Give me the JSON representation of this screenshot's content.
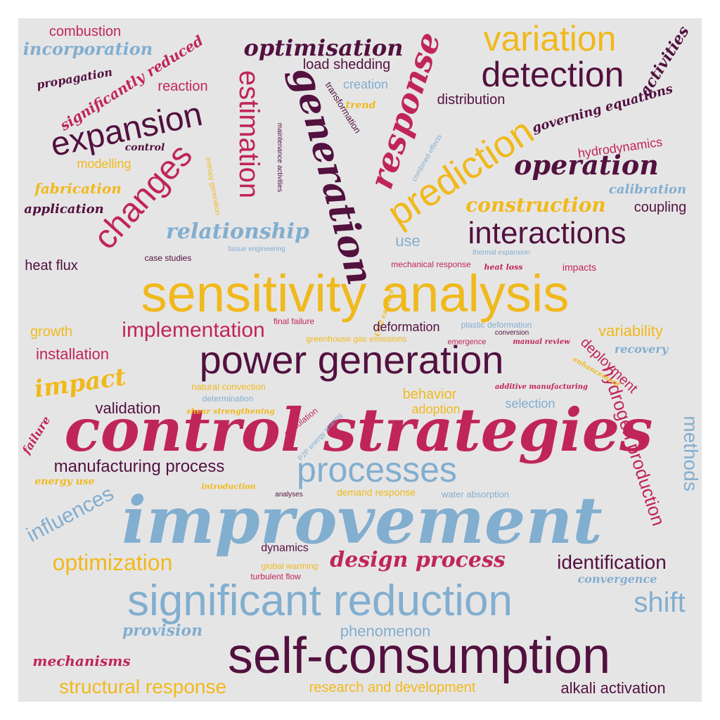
{
  "palette": {
    "background": "#e6e5e6",
    "yellow": "#f0b91c",
    "crimson": "#c0255a",
    "plum": "#52113f",
    "blue": "#82aecf"
  },
  "words": [
    {
      "text": "sensitivity analysis",
      "color": "yellow",
      "style": "sans"
    },
    {
      "text": "control strategies",
      "color": "crimson",
      "style": "script"
    },
    {
      "text": "improvement",
      "color": "blue",
      "style": "script"
    },
    {
      "text": "self-consumption",
      "color": "plum",
      "style": "sans"
    },
    {
      "text": "significant reduction",
      "color": "blue",
      "style": "sans"
    },
    {
      "text": "power generation",
      "color": "plum",
      "style": "sans"
    },
    {
      "text": "processes",
      "color": "blue",
      "style": "sans"
    },
    {
      "text": "prediction",
      "color": "yellow",
      "style": "sans"
    },
    {
      "text": "variation",
      "color": "yellow",
      "style": "sans"
    },
    {
      "text": "detection",
      "color": "plum",
      "style": "sans"
    },
    {
      "text": "expansion",
      "color": "plum",
      "style": "sans"
    },
    {
      "text": "changes",
      "color": "crimson",
      "style": "sans"
    },
    {
      "text": "estimation",
      "color": "crimson",
      "style": "sans"
    },
    {
      "text": "generation",
      "color": "plum",
      "style": "script"
    },
    {
      "text": "response",
      "color": "crimson",
      "style": "script"
    },
    {
      "text": "interactions",
      "color": "plum",
      "style": "sans"
    },
    {
      "text": "operation",
      "color": "plum",
      "style": "script"
    },
    {
      "text": "optimisation",
      "color": "plum",
      "style": "script"
    },
    {
      "text": "relationship",
      "color": "blue",
      "style": "script"
    },
    {
      "text": "construction",
      "color": "yellow",
      "style": "script"
    },
    {
      "text": "implementation",
      "color": "crimson",
      "style": "sans"
    },
    {
      "text": "impact",
      "color": "yellow",
      "style": "script"
    },
    {
      "text": "design process",
      "color": "crimson",
      "style": "script"
    },
    {
      "text": "optimization",
      "color": "yellow",
      "style": "sans"
    },
    {
      "text": "identification",
      "color": "plum",
      "style": "sans"
    },
    {
      "text": "influences",
      "color": "blue",
      "style": "sans"
    },
    {
      "text": "manufacturing process",
      "color": "plum",
      "style": "sans"
    },
    {
      "text": "structural response",
      "color": "yellow",
      "style": "sans"
    },
    {
      "text": "hydrogen production",
      "color": "crimson",
      "style": "sans"
    },
    {
      "text": "methods",
      "color": "blue",
      "style": "sans"
    },
    {
      "text": "shift",
      "color": "blue",
      "style": "sans"
    },
    {
      "text": "combustion",
      "color": "crimson",
      "style": "sans"
    },
    {
      "text": "incorporation",
      "color": "blue",
      "style": "script"
    },
    {
      "text": "propagation",
      "color": "plum",
      "style": "script"
    },
    {
      "text": "significantly reduced",
      "color": "crimson",
      "style": "script"
    },
    {
      "text": "reaction",
      "color": "crimson",
      "style": "sans"
    },
    {
      "text": "load shedding",
      "color": "plum",
      "style": "sans"
    },
    {
      "text": "creation",
      "color": "blue",
      "style": "sans"
    },
    {
      "text": "trend",
      "color": "yellow",
      "style": "script"
    },
    {
      "text": "transformation",
      "color": "plum",
      "style": "sans"
    },
    {
      "text": "distribution",
      "color": "plum",
      "style": "sans"
    },
    {
      "text": "activities",
      "color": "plum",
      "style": "script"
    },
    {
      "text": "governing equations",
      "color": "plum",
      "style": "script"
    },
    {
      "text": "hydrodynamics",
      "color": "crimson",
      "style": "sans"
    },
    {
      "text": "control",
      "color": "plum",
      "style": "script"
    },
    {
      "text": "modelling",
      "color": "yellow",
      "style": "sans"
    },
    {
      "text": "fabrication",
      "color": "yellow",
      "style": "script"
    },
    {
      "text": "application",
      "color": "plum",
      "style": "script"
    },
    {
      "text": "maintenance activities",
      "color": "plum",
      "style": "sans"
    },
    {
      "text": "entropy generation",
      "color": "yellow",
      "style": "sans"
    },
    {
      "text": "combined effects",
      "color": "blue",
      "style": "sans"
    },
    {
      "text": "calibration",
      "color": "blue",
      "style": "script"
    },
    {
      "text": "coupling",
      "color": "plum",
      "style": "sans"
    },
    {
      "text": "use",
      "color": "blue",
      "style": "sans"
    },
    {
      "text": "heat flux",
      "color": "plum",
      "style": "sans"
    },
    {
      "text": "case studies",
      "color": "plum",
      "style": "sans"
    },
    {
      "text": "tissue engineering",
      "color": "blue",
      "style": "sans"
    },
    {
      "text": "thermal expansion",
      "color": "blue",
      "style": "sans"
    },
    {
      "text": "mechanical response",
      "color": "crimson",
      "style": "sans"
    },
    {
      "text": "heat loss",
      "color": "crimson",
      "style": "script"
    },
    {
      "text": "impacts",
      "color": "crimson",
      "style": "sans"
    },
    {
      "text": "CO2 capture",
      "color": "yellow",
      "style": "script"
    },
    {
      "text": "growth",
      "color": "yellow",
      "style": "sans"
    },
    {
      "text": "final failure",
      "color": "crimson",
      "style": "sans"
    },
    {
      "text": "deformation",
      "color": "plum",
      "style": "sans"
    },
    {
      "text": "plastic deformation",
      "color": "blue",
      "style": "sans"
    },
    {
      "text": "conversion",
      "color": "plum",
      "style": "sans"
    },
    {
      "text": "greenhouse gas emissions",
      "color": "yellow",
      "style": "sans"
    },
    {
      "text": "emergence",
      "color": "crimson",
      "style": "sans"
    },
    {
      "text": "manual review",
      "color": "crimson",
      "style": "script"
    },
    {
      "text": "variability",
      "color": "yellow",
      "style": "sans"
    },
    {
      "text": "installation",
      "color": "crimson",
      "style": "sans"
    },
    {
      "text": "deployment",
      "color": "crimson",
      "style": "sans"
    },
    {
      "text": "recovery",
      "color": "blue",
      "style": "script"
    },
    {
      "text": "enhancement",
      "color": "yellow",
      "style": "script"
    },
    {
      "text": "additive manufacturing",
      "color": "crimson",
      "style": "script"
    },
    {
      "text": "natural convection",
      "color": "yellow",
      "style": "sans"
    },
    {
      "text": "determination",
      "color": "blue",
      "style": "sans"
    },
    {
      "text": "shear strengthening",
      "color": "yellow",
      "style": "script"
    },
    {
      "text": "behavior",
      "color": "yellow",
      "style": "sans"
    },
    {
      "text": "adoption",
      "color": "yellow",
      "style": "sans"
    },
    {
      "text": "selection",
      "color": "blue",
      "style": "sans"
    },
    {
      "text": "validation",
      "color": "plum",
      "style": "sans"
    },
    {
      "text": "failure",
      "color": "crimson",
      "style": "script"
    },
    {
      "text": "calculation",
      "color": "crimson",
      "style": "sans"
    },
    {
      "text": "P2P energy sharing",
      "color": "blue",
      "style": "sans"
    },
    {
      "text": "energy use",
      "color": "yellow",
      "style": "script"
    },
    {
      "text": "introduction",
      "color": "yellow",
      "style": "script"
    },
    {
      "text": "analyses",
      "color": "plum",
      "style": "sans"
    },
    {
      "text": "demand response",
      "color": "yellow",
      "style": "sans"
    },
    {
      "text": "water absorption",
      "color": "blue",
      "style": "sans"
    },
    {
      "text": "dynamics",
      "color": "plum",
      "style": "sans"
    },
    {
      "text": "global warming",
      "color": "yellow",
      "style": "sans"
    },
    {
      "text": "turbulent flow",
      "color": "crimson",
      "style": "sans"
    },
    {
      "text": "convergence",
      "color": "blue",
      "style": "script"
    },
    {
      "text": "provision",
      "color": "blue",
      "style": "script"
    },
    {
      "text": "phenomenon",
      "color": "blue",
      "style": "sans"
    },
    {
      "text": "mechanisms",
      "color": "crimson",
      "style": "script"
    },
    {
      "text": "research and development",
      "color": "yellow",
      "style": "sans"
    },
    {
      "text": "alkali activation",
      "color": "plum",
      "style": "sans"
    }
  ]
}
